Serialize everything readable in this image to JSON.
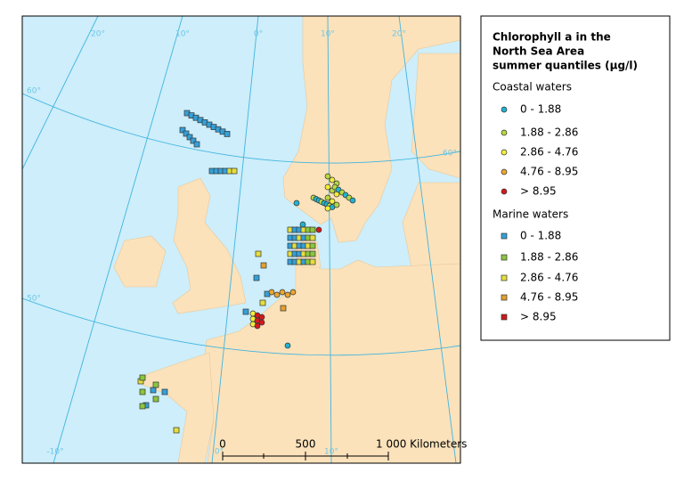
{
  "legend": {
    "title_lines": [
      "Chlorophyll a in the",
      "North Sea Area",
      "summer quantiles (µg/l)"
    ],
    "groups": [
      {
        "name": "Coastal waters",
        "shape": "circle",
        "items": [
          "0 - 1.88",
          "1.88 - 2.86",
          "2.86 - 4.76",
          "4.76 - 8.95",
          "> 8.95"
        ],
        "colors": [
          "#1fb3d2",
          "#b5d843",
          "#f2ee3a",
          "#eda62e",
          "#d4191c"
        ]
      },
      {
        "name": "Marine waters",
        "shape": "square",
        "items": [
          "0 - 1.88",
          "1.88 - 2.86",
          "2.86 - 4.76",
          "4.76 - 8.95",
          "> 8.95"
        ],
        "colors": [
          "#35a0d8",
          "#8cc63c",
          "#e6de3e",
          "#e3a02e",
          "#cc1b1b"
        ]
      }
    ]
  },
  "scale": {
    "labels": [
      "0",
      "500",
      "1 000 Kilometers"
    ]
  },
  "graticule": {
    "top": [
      "20°",
      "10°",
      "0°",
      "10°",
      "20°"
    ],
    "left": [
      "60°",
      "50°"
    ],
    "right": [
      "60°"
    ],
    "bottom": [
      "-10°",
      "0°",
      "10°"
    ]
  }
}
